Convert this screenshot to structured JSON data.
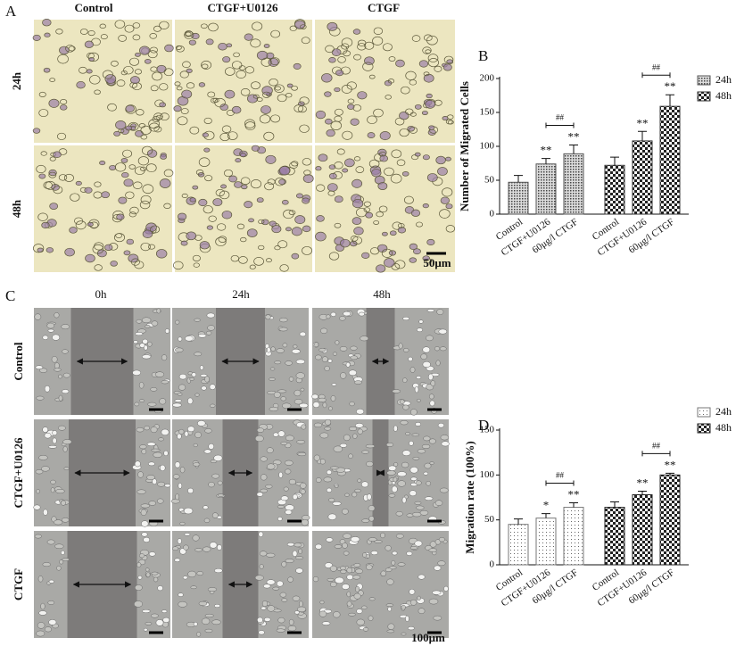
{
  "figure": {
    "panel_labels": [
      "A",
      "B",
      "C",
      "D"
    ],
    "a": {
      "columns": [
        "Control",
        "CTGF+U0126",
        "CTGF"
      ],
      "rows": [
        "24h",
        "48h"
      ],
      "scale": "50μm"
    },
    "c": {
      "columns": [
        "0h",
        "24h",
        "48h"
      ],
      "rows": [
        "Control",
        "CTGF+U0126",
        "CTGF"
      ],
      "scale": "100μm"
    }
  },
  "chart_data": [
    {
      "type": "bar",
      "ylabel": "Number of Migrated Cells",
      "categories": [
        "Control",
        "CTGF+U0126",
        "60μg/l CTGF"
      ],
      "ylim": [
        0,
        200
      ],
      "yticks": [
        0,
        50,
        100,
        150,
        200
      ],
      "legend": "right",
      "series": [
        {
          "name": "24h",
          "color": "#555555",
          "pattern": "dots",
          "values": [
            47,
            74,
            89
          ],
          "errors": [
            10,
            8,
            13
          ],
          "significance": [
            null,
            "**",
            "**"
          ],
          "bracket": "##"
        },
        {
          "name": "48h",
          "color": "#333333",
          "pattern": "checker",
          "values": [
            72,
            108,
            159
          ],
          "errors": [
            12,
            14,
            17
          ],
          "significance": [
            null,
            "**",
            "**"
          ],
          "bracket": "##"
        }
      ]
    },
    {
      "type": "bar",
      "ylabel": "Migration rate (100%)",
      "categories": [
        "Control",
        "CTGF+U0126",
        "60μg/l CTGF"
      ],
      "ylim": [
        0,
        150
      ],
      "yticks": [
        0,
        50,
        100,
        150
      ],
      "legend": "right",
      "series": [
        {
          "name": "24h",
          "color": "#777777",
          "pattern": "sparse",
          "values": [
            45,
            52,
            64
          ],
          "errors": [
            6,
            5,
            5
          ],
          "significance": [
            null,
            "*",
            "**"
          ],
          "bracket": "##"
        },
        {
          "name": "48h",
          "color": "#222222",
          "pattern": "checker",
          "values": [
            64,
            78,
            100
          ],
          "errors": [
            6,
            4,
            2
          ],
          "significance": [
            null,
            "**",
            "**"
          ],
          "bracket": "##"
        }
      ]
    }
  ]
}
